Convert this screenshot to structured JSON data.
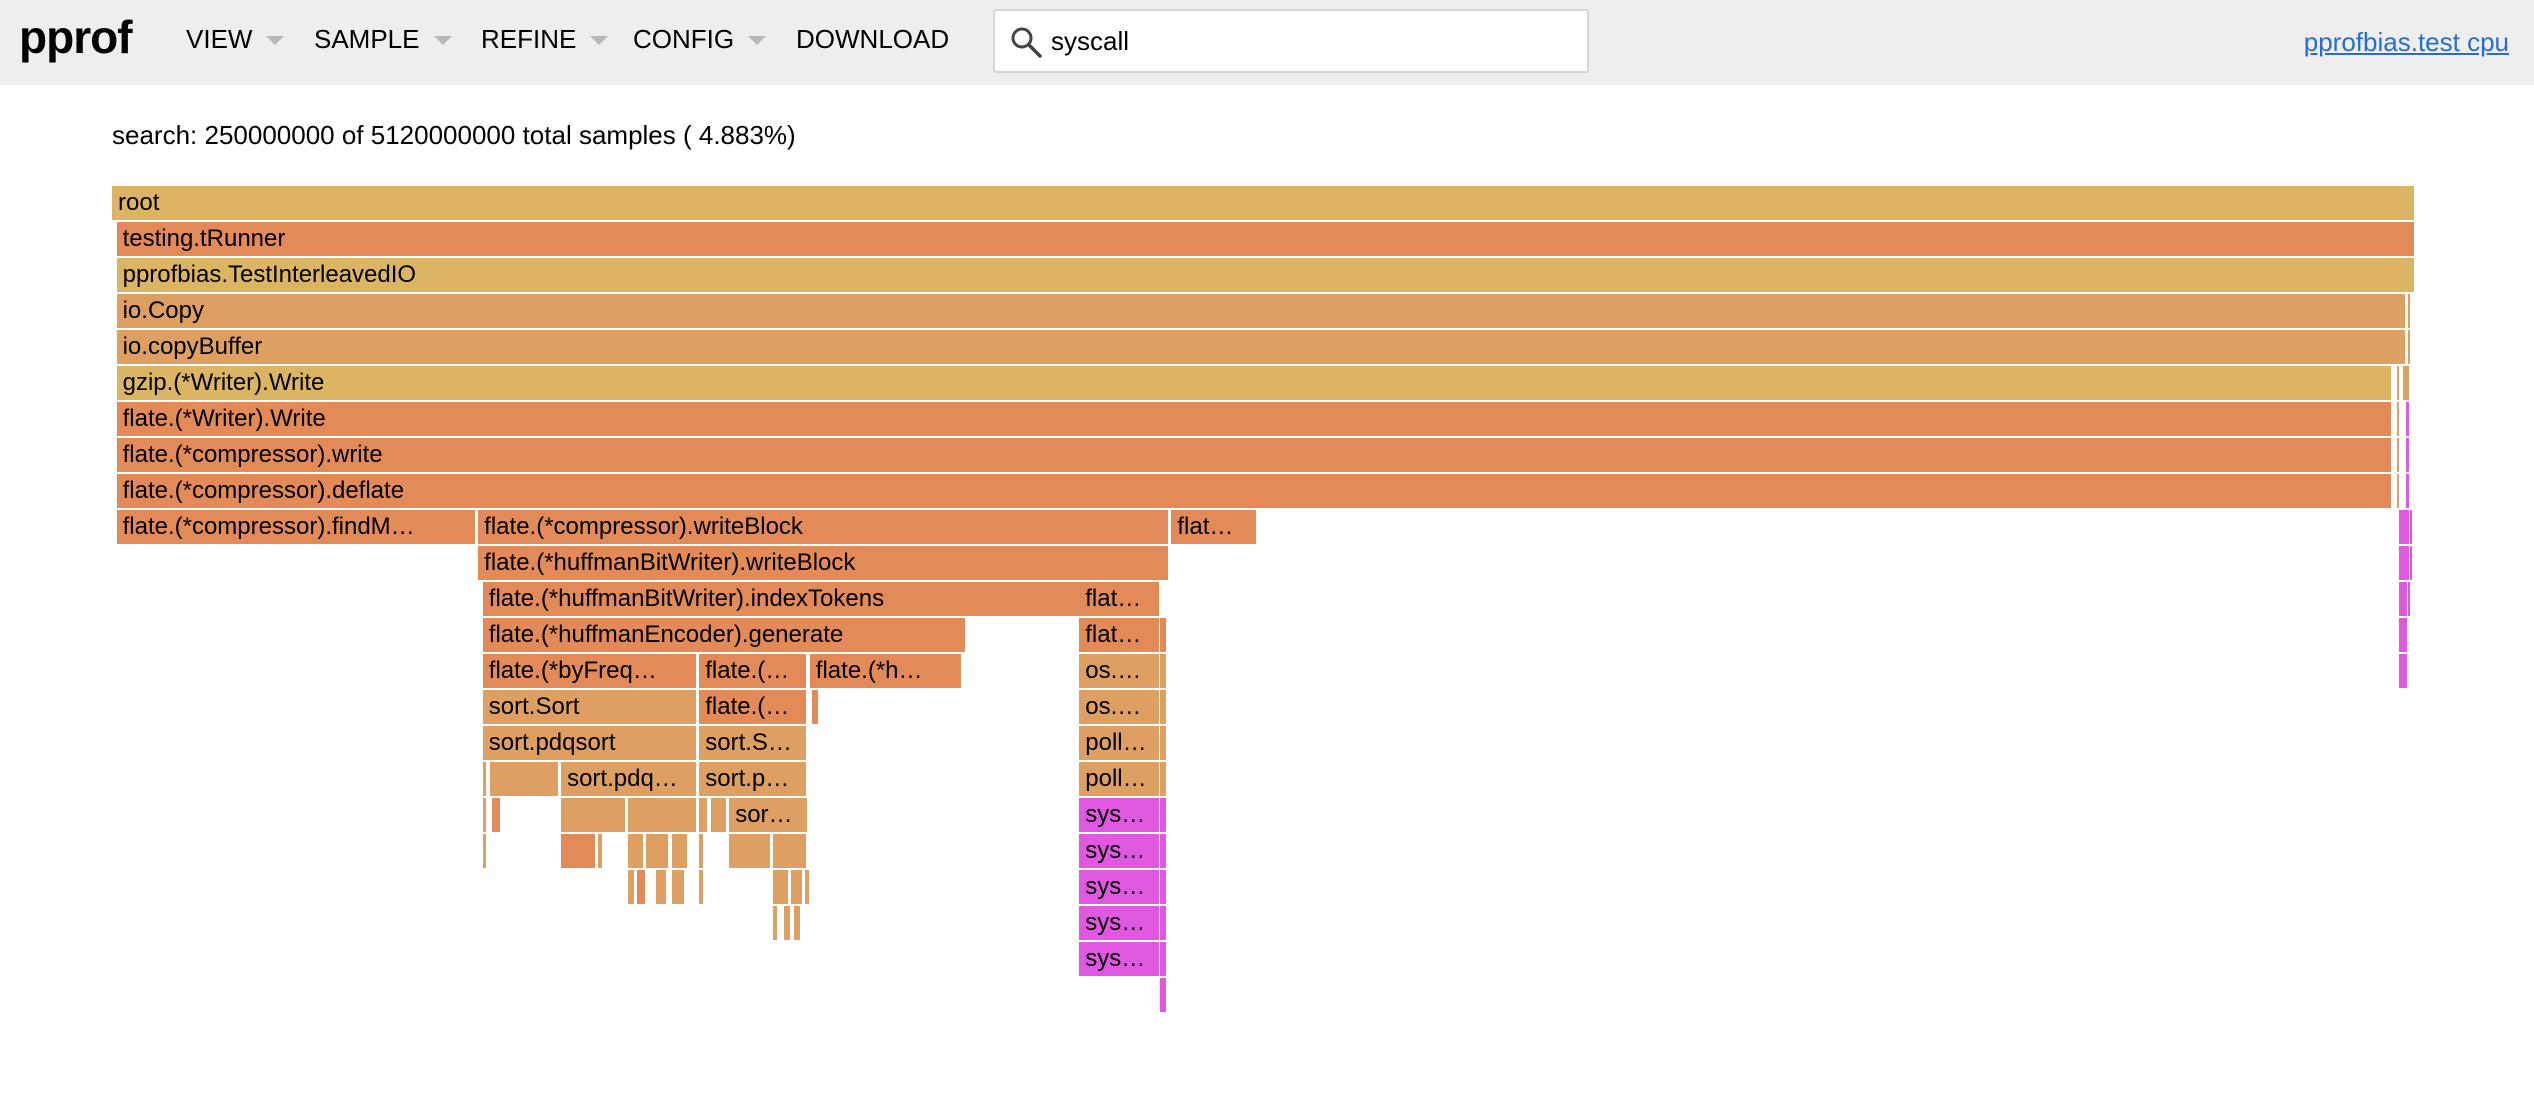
{
  "app": {
    "logo": "pprof",
    "title_link": "pprofbias.test cpu"
  },
  "menu": [
    {
      "label": "VIEW",
      "dropdown": true
    },
    {
      "label": "SAMPLE",
      "dropdown": true
    },
    {
      "label": "REFINE",
      "dropdown": true
    },
    {
      "label": "CONFIG",
      "dropdown": true
    },
    {
      "label": "DOWNLOAD",
      "dropdown": false
    }
  ],
  "search": {
    "value": "syscall",
    "placeholder": "",
    "icon": "search-icon"
  },
  "summary": "search: 250000000 of 5120000000 total samples ( 4.883%)",
  "colors": {
    "header_bg": "#eeeeee",
    "link": "#2a6bd1",
    "frame_gold": "#dbb563",
    "frame_orange": "#e28a58",
    "frame_tan": "#dea062",
    "frame_highlight": "#e058e0"
  },
  "flamegraph": {
    "total_samples": 5120000000,
    "frames": [
      {
        "label": "root",
        "depth": 0,
        "start": 0,
        "share": 1,
        "color": "gold"
      },
      {
        "label": "testing.tRunner",
        "depth": 1,
        "start": 0.002,
        "share": 0.998,
        "color": "orange"
      },
      {
        "label": "pprofbias.TestInterleavedIO",
        "depth": 2,
        "start": 0.002,
        "share": 0.998,
        "color": "gold"
      },
      {
        "label": "io.Copy",
        "depth": 3,
        "start": 0.002,
        "share": 0.994,
        "color": "tan"
      },
      {
        "label": "io.copyBuffer",
        "depth": 4,
        "start": 0.002,
        "share": 0.994,
        "color": "tan"
      },
      {
        "label": "gzip.(*Writer).Write",
        "depth": 5,
        "start": 0.002,
        "share": 0.988,
        "color": "gold"
      },
      {
        "label": "flate.(*Writer).Write",
        "depth": 6,
        "start": 0.002,
        "share": 0.988,
        "color": "orange"
      },
      {
        "label": "flate.(*compressor).write",
        "depth": 7,
        "start": 0.002,
        "share": 0.988,
        "color": "orange"
      },
      {
        "label": "flate.(*compressor).deflate",
        "depth": 8,
        "start": 0.002,
        "share": 0.988,
        "color": "orange"
      },
      {
        "label": "flate.(*compressor).findM…",
        "depth": 9,
        "start": 0.002,
        "share": 0.156,
        "color": "orange"
      },
      {
        "label": "flate.(*compressor).writeBlock",
        "depth": 9,
        "start": 0.159,
        "share": 0.3,
        "color": "orange"
      },
      {
        "label": "flat…",
        "depth": 9,
        "start": 0.46,
        "share": 0.037,
        "color": "orange"
      },
      {
        "label": "flate.(*huffmanBitWriter).writeBlock",
        "depth": 10,
        "start": 0.159,
        "share": 0.3,
        "color": "orange"
      },
      {
        "label": "flate.(*huffmanBitWriter).indexTokens",
        "depth": 11,
        "start": 0.161,
        "share": 0.26,
        "color": "orange"
      },
      {
        "label": "flat…",
        "depth": 11,
        "start": 0.42,
        "share": 0.035,
        "color": "orange"
      },
      {
        "label": "flate.(*huffmanEncoder).generate",
        "depth": 12,
        "start": 0.161,
        "share": 0.21,
        "color": "orange"
      },
      {
        "label": "flat…",
        "depth": 12,
        "start": 0.42,
        "share": 0.035,
        "color": "orange"
      },
      {
        "label": "flate.(*byFreq…",
        "depth": 13,
        "start": 0.161,
        "share": 0.093,
        "color": "orange"
      },
      {
        "label": "flate.(…",
        "depth": 13,
        "start": 0.255,
        "share": 0.047,
        "color": "orange"
      },
      {
        "label": "flate.(*h…",
        "depth": 13,
        "start": 0.303,
        "share": 0.066,
        "color": "orange"
      },
      {
        "label": "os.…",
        "depth": 13,
        "start": 0.42,
        "share": 0.035,
        "color": "tan"
      },
      {
        "label": "sort.Sort",
        "depth": 14,
        "start": 0.161,
        "share": 0.093,
        "color": "tan"
      },
      {
        "label": "flate.(…",
        "depth": 14,
        "start": 0.255,
        "share": 0.047,
        "color": "orange"
      },
      {
        "label": "os.…",
        "depth": 14,
        "start": 0.42,
        "share": 0.035,
        "color": "tan"
      },
      {
        "label": "sort.pdqsort",
        "depth": 15,
        "start": 0.161,
        "share": 0.093,
        "color": "tan"
      },
      {
        "label": "sort.S…",
        "depth": 15,
        "start": 0.255,
        "share": 0.047,
        "color": "tan"
      },
      {
        "label": "poll…",
        "depth": 15,
        "start": 0.42,
        "share": 0.035,
        "color": "tan"
      },
      {
        "label": "sort.pdq…",
        "depth": 16,
        "start": 0.195,
        "share": 0.059,
        "color": "tan"
      },
      {
        "label": "sort.p…",
        "depth": 16,
        "start": 0.255,
        "share": 0.047,
        "color": "tan"
      },
      {
        "label": "poll…",
        "depth": 16,
        "start": 0.42,
        "share": 0.035,
        "color": "tan"
      },
      {
        "label": "sor…",
        "depth": 17,
        "start": 0.268,
        "share": 0.034,
        "color": "tan"
      },
      {
        "label": "sys…",
        "depth": 17,
        "start": 0.42,
        "share": 0.035,
        "color": "highlight"
      },
      {
        "label": "sys…",
        "depth": 18,
        "start": 0.42,
        "share": 0.035,
        "color": "highlight"
      },
      {
        "label": "sys…",
        "depth": 19,
        "start": 0.42,
        "share": 0.035,
        "color": "highlight"
      },
      {
        "label": "sys…",
        "depth": 20,
        "start": 0.42,
        "share": 0.035,
        "color": "highlight"
      },
      {
        "label": "sys…",
        "depth": 21,
        "start": 0.42,
        "share": 0.035,
        "color": "highlight"
      },
      {
        "label": "",
        "depth": 9,
        "start": 0.993,
        "share": 0.005,
        "color": "highlight"
      },
      {
        "label": "",
        "depth": 10,
        "start": 0.993,
        "share": 0.005,
        "color": "highlight"
      },
      {
        "label": "",
        "depth": 11,
        "start": 0.993,
        "share": 0.004,
        "color": "highlight"
      },
      {
        "label": "",
        "depth": 12,
        "start": 0.993,
        "share": 0.004,
        "color": "highlight"
      },
      {
        "label": "",
        "depth": 13,
        "start": 0.993,
        "share": 0.004,
        "color": "highlight"
      },
      {
        "label": "",
        "depth": 12,
        "start": 0.455,
        "share": 0.003,
        "color": "orange"
      },
      {
        "label": "",
        "depth": 13,
        "start": 0.455,
        "share": 0.003,
        "color": "tan"
      },
      {
        "label": "",
        "depth": 14,
        "start": 0.455,
        "share": 0.003,
        "color": "tan"
      },
      {
        "label": "",
        "depth": 15,
        "start": 0.455,
        "share": 0.003,
        "color": "tan"
      },
      {
        "label": "",
        "depth": 16,
        "start": 0.455,
        "share": 0.003,
        "color": "tan"
      },
      {
        "label": "",
        "depth": 17,
        "start": 0.455,
        "share": 0.003,
        "color": "highlight"
      },
      {
        "label": "",
        "depth": 18,
        "start": 0.455,
        "share": 0.003,
        "color": "highlight"
      },
      {
        "label": "",
        "depth": 19,
        "start": 0.455,
        "share": 0.003,
        "color": "highlight"
      },
      {
        "label": "",
        "depth": 20,
        "start": 0.455,
        "share": 0.003,
        "color": "highlight"
      },
      {
        "label": "",
        "depth": 21,
        "start": 0.455,
        "share": 0.003,
        "color": "highlight"
      },
      {
        "label": "",
        "depth": 22,
        "start": 0.455,
        "share": 0.003,
        "color": "highlight"
      },
      {
        "label": "",
        "depth": 14,
        "start": 0.304,
        "share": 0.003,
        "color": "orange"
      },
      {
        "label": "",
        "depth": 16,
        "start": 0.161,
        "share": 0.002,
        "color": "tan"
      },
      {
        "label": "",
        "depth": 16,
        "start": 0.164,
        "share": 0.03,
        "color": "tan"
      },
      {
        "label": "",
        "depth": 17,
        "start": 0.161,
        "share": 0.002,
        "color": "tan"
      },
      {
        "label": "",
        "depth": 17,
        "start": 0.165,
        "share": 0.004,
        "color": "orange"
      },
      {
        "label": "",
        "depth": 17,
        "start": 0.195,
        "share": 0.028,
        "color": "tan"
      },
      {
        "label": "",
        "depth": 17,
        "start": 0.224,
        "share": 0.03,
        "color": "tan"
      },
      {
        "label": "",
        "depth": 17,
        "start": 0.255,
        "share": 0.004,
        "color": "tan"
      },
      {
        "label": "",
        "depth": 17,
        "start": 0.26,
        "share": 0.007,
        "color": "tan"
      },
      {
        "label": "",
        "depth": 18,
        "start": 0.161,
        "share": 0.002,
        "color": "tan"
      },
      {
        "label": "",
        "depth": 18,
        "start": 0.195,
        "share": 0.015,
        "color": "orange"
      },
      {
        "label": "",
        "depth": 18,
        "start": 0.211,
        "share": 0.002,
        "color": "tan"
      },
      {
        "label": "",
        "depth": 18,
        "start": 0.224,
        "share": 0.007,
        "color": "tan"
      },
      {
        "label": "",
        "depth": 18,
        "start": 0.232,
        "share": 0.01,
        "color": "tan"
      },
      {
        "label": "",
        "depth": 18,
        "start": 0.243,
        "share": 0.007,
        "color": "tan"
      },
      {
        "label": "",
        "depth": 18,
        "start": 0.255,
        "share": 0.002,
        "color": "tan"
      },
      {
        "label": "",
        "depth": 18,
        "start": 0.268,
        "share": 0.018,
        "color": "tan"
      },
      {
        "label": "",
        "depth": 18,
        "start": 0.287,
        "share": 0.015,
        "color": "tan"
      },
      {
        "label": "",
        "depth": 19,
        "start": 0.224,
        "share": 0.003,
        "color": "tan"
      },
      {
        "label": "",
        "depth": 19,
        "start": 0.228,
        "share": 0.004,
        "color": "orange"
      },
      {
        "label": "",
        "depth": 19,
        "start": 0.236,
        "share": 0.005,
        "color": "tan"
      },
      {
        "label": "",
        "depth": 19,
        "start": 0.243,
        "share": 0.006,
        "color": "tan"
      },
      {
        "label": "",
        "depth": 19,
        "start": 0.255,
        "share": 0.002,
        "color": "tan"
      },
      {
        "label": "",
        "depth": 19,
        "start": 0.287,
        "share": 0.007,
        "color": "tan"
      },
      {
        "label": "",
        "depth": 19,
        "start": 0.295,
        "share": 0.005,
        "color": "tan"
      },
      {
        "label": "",
        "depth": 19,
        "start": 0.301,
        "share": 0.002,
        "color": "tan"
      },
      {
        "label": "",
        "depth": 20,
        "start": 0.287,
        "share": 0.002,
        "color": "tan"
      },
      {
        "label": "",
        "depth": 20,
        "start": 0.292,
        "share": 0.003,
        "color": "tan"
      },
      {
        "label": "",
        "depth": 20,
        "start": 0.296,
        "share": 0.003,
        "color": "tan"
      },
      {
        "label": "",
        "depth": 3,
        "start": 0.997,
        "share": 0.001,
        "color": "tan"
      },
      {
        "label": "",
        "depth": 4,
        "start": 0.997,
        "share": 0.001,
        "color": "tan"
      },
      {
        "label": "",
        "depth": 5,
        "start": 0.992,
        "share": 0.001,
        "color": "tan"
      },
      {
        "label": "",
        "depth": 5,
        "start": 0.995,
        "share": 0.003,
        "color": "tan"
      },
      {
        "label": "",
        "depth": 6,
        "start": 0.992,
        "share": 0.001,
        "color": "tan"
      },
      {
        "label": "",
        "depth": 6,
        "start": 0.996,
        "share": 0.002,
        "color": "highlight"
      },
      {
        "label": "",
        "depth": 7,
        "start": 0.992,
        "share": 0.001,
        "color": "tan"
      },
      {
        "label": "",
        "depth": 7,
        "start": 0.996,
        "share": 0.002,
        "color": "highlight"
      },
      {
        "label": "",
        "depth": 8,
        "start": 0.992,
        "share": 0.001,
        "color": "tan"
      },
      {
        "label": "",
        "depth": 8,
        "start": 0.996,
        "share": 0.002,
        "color": "highlight"
      },
      {
        "label": "",
        "depth": 9,
        "start": 0.998,
        "share": 0.001,
        "color": "highlight"
      },
      {
        "label": "",
        "depth": 10,
        "start": 0.998,
        "share": 0.001,
        "color": "highlight"
      },
      {
        "label": "",
        "depth": 11,
        "start": 0.997,
        "share": 0.001,
        "color": "highlight"
      }
    ]
  }
}
